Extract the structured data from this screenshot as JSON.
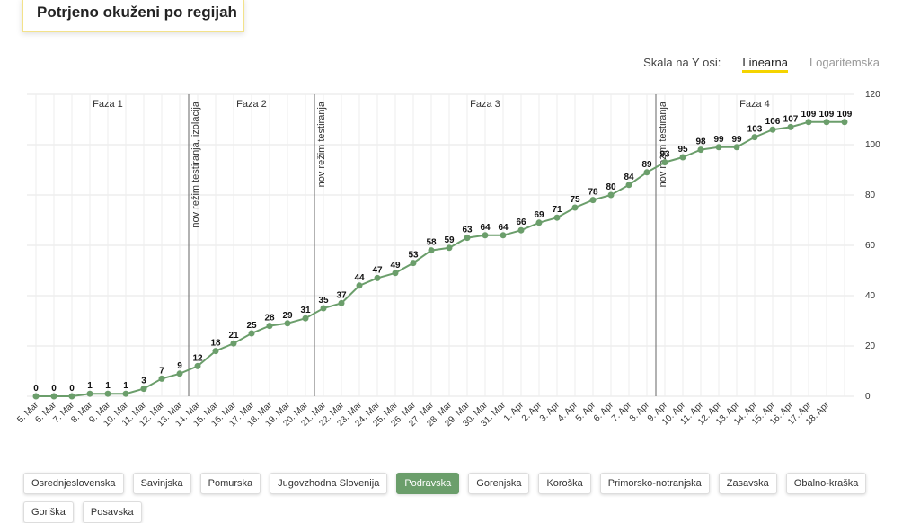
{
  "header": {
    "title": "Potrjeno okuženi po regijah"
  },
  "scale_toggle": {
    "label": "Skala na Y osi:",
    "options": [
      "Linearna",
      "Logaritemska"
    ],
    "active": 0
  },
  "chart_data": {
    "type": "line",
    "categories": [
      "5. Mar",
      "6. Mar",
      "7. Mar",
      "8. Mar",
      "9. Mar",
      "10. Mar",
      "11. Mar",
      "12. Mar",
      "13. Mar",
      "14. Mar",
      "15. Mar",
      "16. Mar",
      "17. Mar",
      "18. Mar",
      "19. Mar",
      "20. Mar",
      "21. Mar",
      "22. Mar",
      "23. Mar",
      "24. Mar",
      "25. Mar",
      "26. Mar",
      "27. Mar",
      "28. Mar",
      "29. Mar",
      "30. Mar",
      "31. Mar",
      "1. Apr",
      "2. Apr",
      "3. Apr",
      "4. Apr",
      "5. Apr",
      "6. Apr",
      "7. Apr",
      "8. Apr",
      "9. Apr",
      "10. Apr",
      "11. Apr",
      "12. Apr",
      "13. Apr",
      "14. Apr",
      "15. Apr",
      "16. Apr",
      "17. Apr",
      "18. Apr",
      null
    ],
    "series": [
      {
        "name": "Podravska",
        "color": "#6b9e6b",
        "values": [
          0,
          0,
          0,
          1,
          1,
          1,
          3,
          7,
          9,
          12,
          18,
          21,
          25,
          28,
          29,
          31,
          35,
          37,
          44,
          47,
          49,
          53,
          58,
          59,
          63,
          64,
          64,
          66,
          69,
          71,
          75,
          78,
          80,
          84,
          89,
          93,
          95,
          98,
          99,
          99,
          103,
          106,
          107,
          109,
          109,
          109
        ]
      }
    ],
    "ylim": [
      0,
      120
    ],
    "yticks": [
      0,
      20,
      40,
      60,
      80,
      100,
      120
    ],
    "grid": true,
    "phases": [
      "Faza 1",
      "Faza 2",
      "Faza 3",
      "Faza 4"
    ],
    "markers": [
      {
        "label": "nov režim testiranja, izolacija",
        "at": 8.5
      },
      {
        "label": "nov režim testiranja",
        "at": 15.5
      },
      {
        "label": "nov režim testiranja",
        "at": 34.5
      }
    ]
  },
  "regions": [
    "Osrednjeslovenska",
    "Savinjska",
    "Pomurska",
    "Jugovzhodna Slovenija",
    "Podravska",
    "Gorenjska",
    "Koroška",
    "Primorsko-notranjska",
    "Zasavska",
    "Obalno-kraška",
    "Goriška",
    "Posavska"
  ],
  "active_region": 4
}
